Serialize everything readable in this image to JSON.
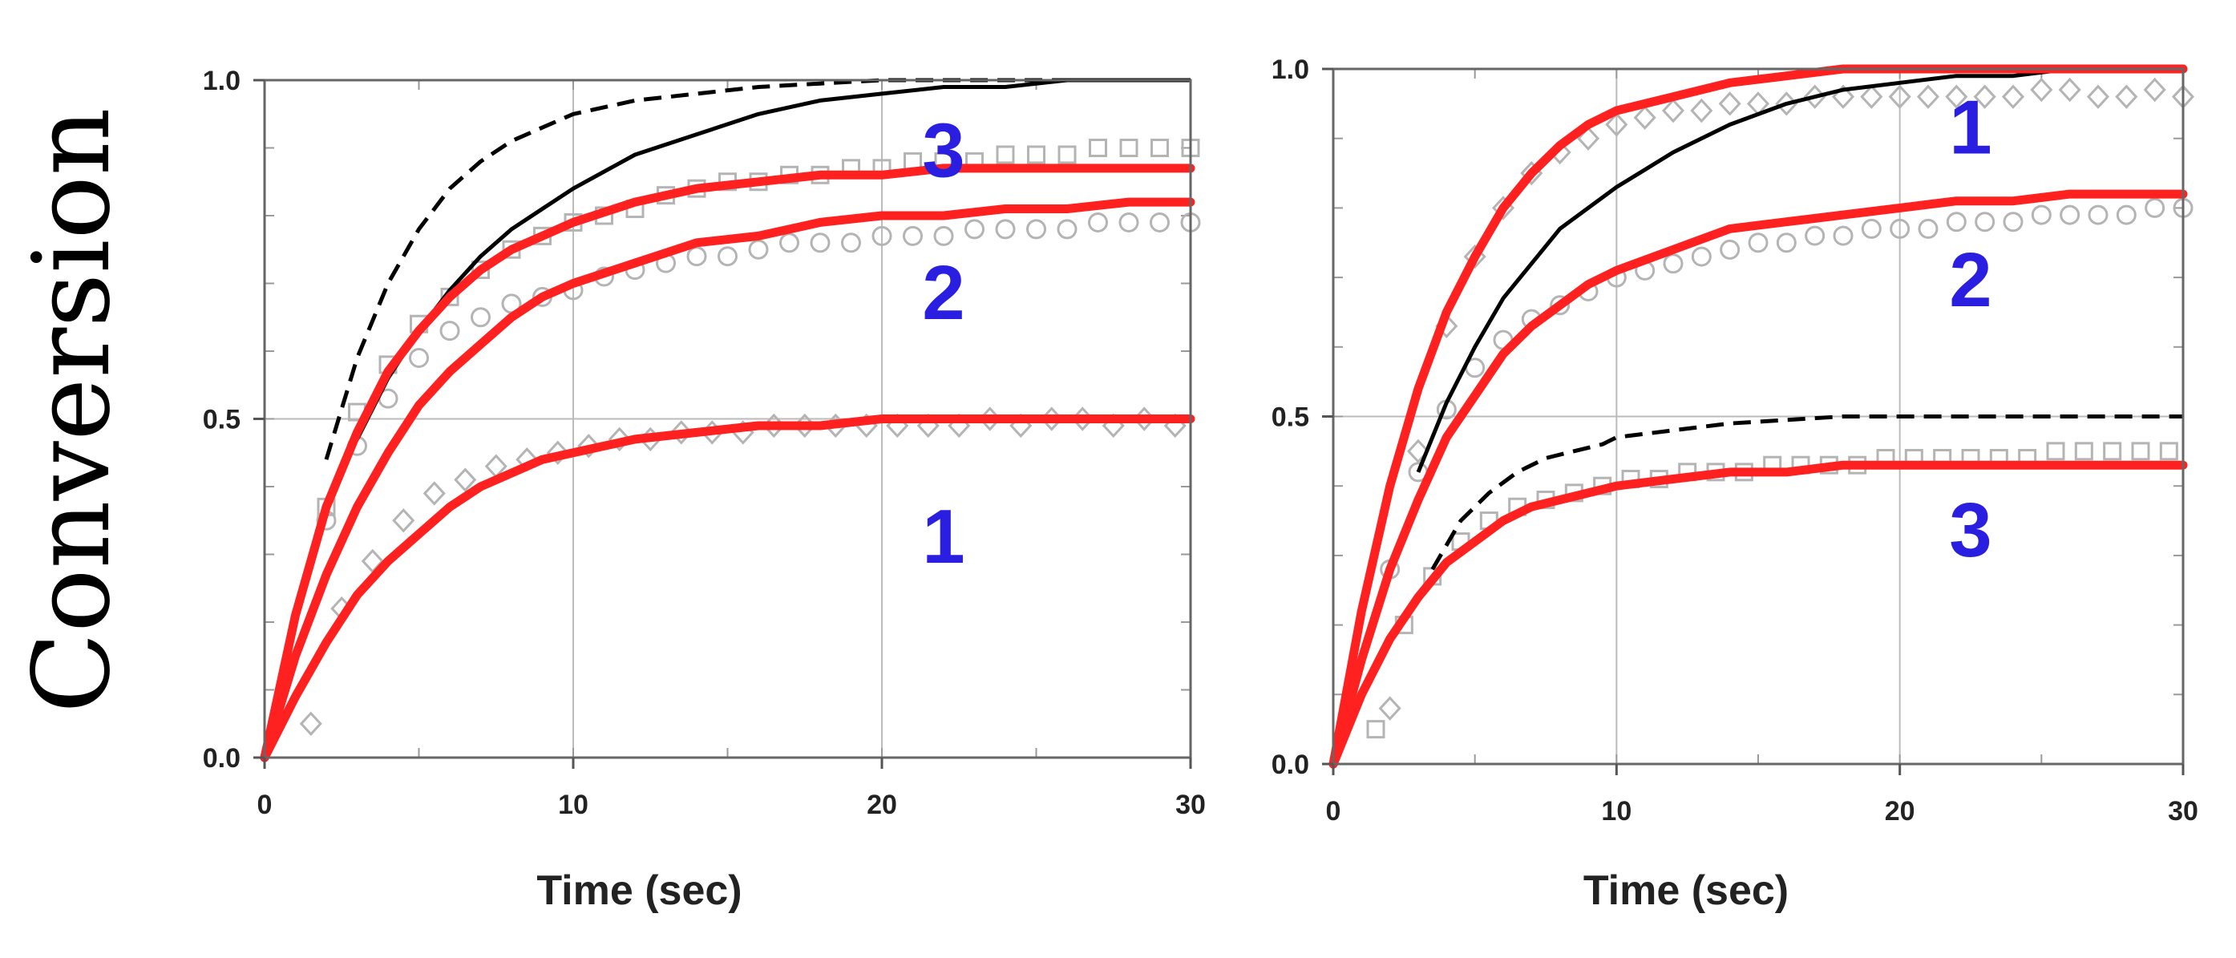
{
  "shared_ylabel": "Conversion",
  "colors": {
    "fit": "#ff2020",
    "model": "#000000",
    "marker": "#b4b4b4",
    "curve_number": "#2a1fe0",
    "grid": "#bbbbbb"
  },
  "chart_data": [
    {
      "type": "line",
      "xlabel": "Time (sec)",
      "ylabel": "Conversion",
      "xlim": [
        0,
        30
      ],
      "ylim": [
        0,
        1
      ],
      "xticks": [
        0,
        10,
        20,
        30
      ],
      "xtick_labels": [
        "0",
        "10",
        "20",
        "30"
      ],
      "yticks": [
        0,
        0.5,
        1
      ],
      "ytick_labels": [
        "0.0",
        "0.5",
        "1.0"
      ],
      "grid": true,
      "series": [
        {
          "role": "data",
          "marker": "diamond",
          "x": [
            1.5,
            2.5,
            3.5,
            4.5,
            5.5,
            6.5,
            7.5,
            8.5,
            9.5,
            10.5,
            11.5,
            12.5,
            13.5,
            14.5,
            15.5,
            16.5,
            17.5,
            18.5,
            19.5,
            20.5,
            21.5,
            22.5,
            23.5,
            24.5,
            25.5,
            26.5,
            27.5,
            28.5,
            29.5
          ],
          "y": [
            0.05,
            0.22,
            0.29,
            0.35,
            0.39,
            0.41,
            0.43,
            0.44,
            0.45,
            0.46,
            0.47,
            0.47,
            0.48,
            0.48,
            0.48,
            0.49,
            0.49,
            0.49,
            0.49,
            0.49,
            0.49,
            0.49,
            0.5,
            0.49,
            0.5,
            0.5,
            0.49,
            0.5,
            0.49
          ]
        },
        {
          "role": "data",
          "marker": "circle",
          "x": [
            2,
            3,
            4,
            5,
            6,
            7,
            8,
            9,
            10,
            11,
            12,
            13,
            14,
            15,
            16,
            17,
            18,
            19,
            20,
            21,
            22,
            23,
            24,
            25,
            26,
            27,
            28,
            29,
            30
          ],
          "y": [
            0.35,
            0.46,
            0.53,
            0.59,
            0.63,
            0.65,
            0.67,
            0.68,
            0.69,
            0.71,
            0.72,
            0.73,
            0.74,
            0.74,
            0.75,
            0.76,
            0.76,
            0.76,
            0.77,
            0.77,
            0.77,
            0.78,
            0.78,
            0.78,
            0.78,
            0.79,
            0.79,
            0.79,
            0.79
          ]
        },
        {
          "role": "data",
          "marker": "square",
          "x": [
            2,
            3,
            4,
            5,
            6,
            7,
            8,
            9,
            10,
            11,
            12,
            13,
            14,
            15,
            16,
            17,
            18,
            19,
            20,
            21,
            22,
            23,
            24,
            25,
            26,
            27,
            28,
            29,
            30
          ],
          "y": [
            0.37,
            0.51,
            0.58,
            0.64,
            0.68,
            0.72,
            0.75,
            0.77,
            0.79,
            0.8,
            0.81,
            0.83,
            0.84,
            0.85,
            0.85,
            0.86,
            0.86,
            0.87,
            0.87,
            0.88,
            0.88,
            0.88,
            0.89,
            0.89,
            0.89,
            0.9,
            0.9,
            0.9,
            0.9
          ]
        },
        {
          "role": "fit",
          "label": "1",
          "style": "solid-red",
          "x": [
            0,
            1,
            2,
            3,
            4,
            5,
            6,
            7,
            8,
            9,
            10,
            12,
            14,
            16,
            18,
            20,
            22,
            24,
            26,
            28,
            30
          ],
          "y": [
            0,
            0.09,
            0.17,
            0.24,
            0.29,
            0.33,
            0.37,
            0.4,
            0.42,
            0.44,
            0.45,
            0.47,
            0.48,
            0.49,
            0.49,
            0.5,
            0.5,
            0.5,
            0.5,
            0.5,
            0.5
          ]
        },
        {
          "role": "fit",
          "label": "2",
          "style": "solid-red",
          "x": [
            0,
            1,
            2,
            3,
            4,
            5,
            6,
            7,
            8,
            9,
            10,
            12,
            14,
            16,
            18,
            20,
            22,
            24,
            26,
            28,
            30
          ],
          "y": [
            0,
            0.15,
            0.27,
            0.37,
            0.45,
            0.52,
            0.57,
            0.61,
            0.65,
            0.68,
            0.7,
            0.73,
            0.76,
            0.77,
            0.79,
            0.8,
            0.8,
            0.81,
            0.81,
            0.82,
            0.82
          ]
        },
        {
          "role": "fit",
          "label": "3",
          "style": "solid-red",
          "x": [
            0,
            1,
            2,
            3,
            4,
            5,
            6,
            7,
            8,
            9,
            10,
            12,
            14,
            16,
            18,
            20,
            22,
            24,
            26,
            28,
            30
          ],
          "y": [
            0,
            0.21,
            0.37,
            0.48,
            0.57,
            0.63,
            0.68,
            0.72,
            0.75,
            0.77,
            0.79,
            0.82,
            0.84,
            0.85,
            0.86,
            0.86,
            0.87,
            0.87,
            0.87,
            0.87,
            0.87
          ]
        },
        {
          "role": "model",
          "style": "solid-black",
          "x": [
            3,
            4,
            5,
            6,
            7,
            8,
            9,
            10,
            12,
            14,
            16,
            18,
            20,
            22,
            24,
            26,
            28,
            30
          ],
          "y": [
            0.47,
            0.56,
            0.63,
            0.69,
            0.74,
            0.78,
            0.81,
            0.84,
            0.89,
            0.92,
            0.95,
            0.97,
            0.98,
            0.99,
            0.99,
            1.0,
            1.0,
            1.0
          ]
        },
        {
          "role": "model",
          "style": "dashed-black",
          "x": [
            2,
            3,
            4,
            5,
            6,
            7,
            8,
            9,
            10,
            12,
            14,
            16,
            18,
            20,
            22,
            24,
            26,
            28,
            30
          ],
          "y": [
            0.44,
            0.59,
            0.7,
            0.78,
            0.84,
            0.88,
            0.91,
            0.93,
            0.95,
            0.97,
            0.98,
            0.99,
            0.995,
            1.0,
            1.0,
            1.0,
            1.0,
            1.0,
            1.0
          ]
        }
      ],
      "curve_labels": [
        {
          "text": "3",
          "x": 22,
          "y": 0.9
        },
        {
          "text": "2",
          "x": 22,
          "y": 0.69
        },
        {
          "text": "1",
          "x": 22,
          "y": 0.33
        }
      ]
    },
    {
      "type": "line",
      "xlabel": "Time (sec)",
      "ylabel": "Conversion",
      "xlim": [
        0,
        30
      ],
      "ylim": [
        0,
        1
      ],
      "xticks": [
        0,
        10,
        20,
        30
      ],
      "xtick_labels": [
        "0",
        "10",
        "20",
        "30"
      ],
      "yticks": [
        0,
        0.5,
        1
      ],
      "ytick_labels": [
        "0.0",
        "0.5",
        "1.0"
      ],
      "grid": true,
      "series": [
        {
          "role": "data",
          "marker": "square",
          "x": [
            1.5,
            2.5,
            3.5,
            4.5,
            5.5,
            6.5,
            7.5,
            8.5,
            9.5,
            10.5,
            11.5,
            12.5,
            13.5,
            14.5,
            15.5,
            16.5,
            17.5,
            18.5,
            19.5,
            20.5,
            21.5,
            22.5,
            23.5,
            24.5,
            25.5,
            26.5,
            27.5,
            28.5,
            29.5
          ],
          "y": [
            0.05,
            0.2,
            0.27,
            0.32,
            0.35,
            0.37,
            0.38,
            0.39,
            0.4,
            0.41,
            0.41,
            0.42,
            0.42,
            0.42,
            0.43,
            0.43,
            0.43,
            0.43,
            0.44,
            0.44,
            0.44,
            0.44,
            0.44,
            0.44,
            0.45,
            0.45,
            0.45,
            0.45,
            0.45
          ]
        },
        {
          "role": "data",
          "marker": "circle",
          "x": [
            2,
            3,
            4,
            5,
            6,
            7,
            8,
            9,
            10,
            11,
            12,
            13,
            14,
            15,
            16,
            17,
            18,
            19,
            20,
            21,
            22,
            23,
            24,
            25,
            26,
            27,
            28,
            29,
            30
          ],
          "y": [
            0.28,
            0.42,
            0.51,
            0.57,
            0.61,
            0.64,
            0.66,
            0.68,
            0.7,
            0.71,
            0.72,
            0.73,
            0.74,
            0.75,
            0.75,
            0.76,
            0.76,
            0.77,
            0.77,
            0.77,
            0.78,
            0.78,
            0.78,
            0.79,
            0.79,
            0.79,
            0.79,
            0.8,
            0.8
          ]
        },
        {
          "role": "data",
          "marker": "diamond",
          "x": [
            2,
            3,
            4,
            5,
            6,
            7,
            8,
            9,
            10,
            11,
            12,
            13,
            14,
            15,
            16,
            17,
            18,
            19,
            20,
            21,
            22,
            23,
            24,
            25,
            26,
            27,
            28,
            29,
            30
          ],
          "y": [
            0.08,
            0.45,
            0.63,
            0.73,
            0.8,
            0.85,
            0.88,
            0.9,
            0.92,
            0.93,
            0.94,
            0.94,
            0.95,
            0.95,
            0.95,
            0.96,
            0.96,
            0.96,
            0.96,
            0.96,
            0.96,
            0.96,
            0.96,
            0.97,
            0.97,
            0.96,
            0.96,
            0.97,
            0.96
          ]
        },
        {
          "role": "fit",
          "label": "1",
          "style": "solid-red",
          "x": [
            0,
            1,
            2,
            3,
            4,
            5,
            6,
            7,
            8,
            9,
            10,
            12,
            14,
            16,
            18,
            20,
            22,
            24,
            26,
            28,
            30
          ],
          "y": [
            0,
            0.22,
            0.4,
            0.54,
            0.65,
            0.73,
            0.8,
            0.85,
            0.89,
            0.92,
            0.94,
            0.96,
            0.98,
            0.99,
            1.0,
            1.0,
            1.0,
            1.0,
            1.0,
            1.0,
            1.0
          ]
        },
        {
          "role": "fit",
          "label": "2",
          "style": "solid-red",
          "x": [
            0,
            1,
            2,
            3,
            4,
            5,
            6,
            7,
            8,
            9,
            10,
            12,
            14,
            16,
            18,
            20,
            22,
            24,
            26,
            28,
            30
          ],
          "y": [
            0,
            0.15,
            0.28,
            0.38,
            0.47,
            0.53,
            0.59,
            0.63,
            0.66,
            0.69,
            0.71,
            0.74,
            0.77,
            0.78,
            0.79,
            0.8,
            0.81,
            0.81,
            0.82,
            0.82,
            0.82
          ]
        },
        {
          "role": "fit",
          "label": "3",
          "style": "solid-red",
          "x": [
            0,
            1,
            2,
            3,
            4,
            5,
            6,
            7,
            8,
            9,
            10,
            12,
            14,
            16,
            18,
            20,
            22,
            24,
            26,
            28,
            30
          ],
          "y": [
            0,
            0.1,
            0.18,
            0.24,
            0.29,
            0.32,
            0.35,
            0.37,
            0.38,
            0.39,
            0.4,
            0.41,
            0.42,
            0.42,
            0.43,
            0.43,
            0.43,
            0.43,
            0.43,
            0.43,
            0.43
          ]
        },
        {
          "role": "model",
          "style": "solid-black",
          "x": [
            3,
            4,
            5,
            6,
            7,
            8,
            9,
            10,
            12,
            14,
            16,
            18,
            20,
            22,
            24,
            26,
            28,
            30
          ],
          "y": [
            0.42,
            0.52,
            0.6,
            0.67,
            0.72,
            0.77,
            0.8,
            0.83,
            0.88,
            0.92,
            0.95,
            0.97,
            0.98,
            0.99,
            0.99,
            1.0,
            1.0,
            1.0
          ]
        },
        {
          "role": "model",
          "style": "dashed-black",
          "x": [
            3.5,
            4.5,
            5.5,
            6.5,
            7.5,
            8.5,
            9.5,
            10,
            12,
            14,
            16,
            18,
            20,
            22,
            24,
            26,
            28,
            30
          ],
          "y": [
            0.28,
            0.35,
            0.39,
            0.42,
            0.44,
            0.45,
            0.46,
            0.47,
            0.48,
            0.49,
            0.495,
            0.5,
            0.5,
            0.5,
            0.5,
            0.5,
            0.5,
            0.5
          ]
        }
      ],
      "curve_labels": [
        {
          "text": "1",
          "x": 22.5,
          "y": 0.92
        },
        {
          "text": "2",
          "x": 22.5,
          "y": 0.7
        },
        {
          "text": "3",
          "x": 22.5,
          "y": 0.34
        }
      ]
    }
  ]
}
